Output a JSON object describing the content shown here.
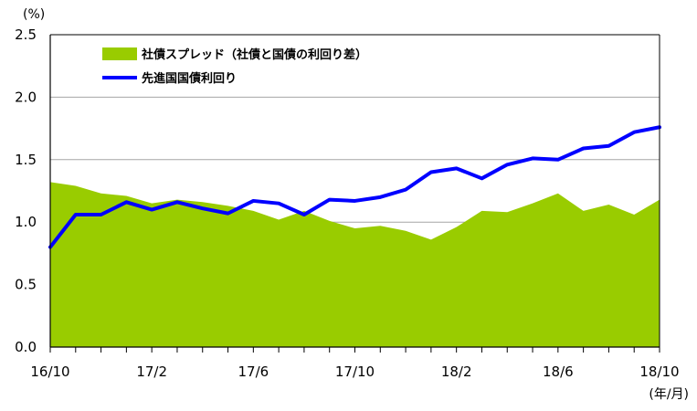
{
  "chart_data": {
    "type": "area",
    "y_unit_label": "(%)",
    "x_unit_label": "(年/月)",
    "ylim": [
      0,
      2.5
    ],
    "y_ticks": [
      "0.0",
      "0.5",
      "1.0",
      "1.5",
      "2.0",
      "2.5"
    ],
    "x_tick_labels": [
      "16/10",
      "17/2",
      "17/6",
      "17/10",
      "18/2",
      "18/6",
      "18/10"
    ],
    "grid": "horizontal",
    "legend_placement": "top-left",
    "x": [
      "16/10",
      "16/11",
      "16/12",
      "17/1",
      "17/2",
      "17/3",
      "17/4",
      "17/5",
      "17/6",
      "17/7",
      "17/8",
      "17/9",
      "17/10",
      "17/11",
      "17/12",
      "18/1",
      "18/2",
      "18/3",
      "18/4",
      "18/5",
      "18/6",
      "18/7",
      "18/8",
      "18/9",
      "18/10"
    ],
    "series": [
      {
        "name": "社債スプレッド（社債と国債の利回り差）",
        "kind": "area",
        "color": "#99cc00",
        "values": [
          1.32,
          1.29,
          1.23,
          1.21,
          1.15,
          1.18,
          1.16,
          1.13,
          1.09,
          1.02,
          1.09,
          1.01,
          0.95,
          0.97,
          0.93,
          0.86,
          0.96,
          1.09,
          1.08,
          1.15,
          1.23,
          1.09,
          1.14,
          1.06,
          1.18
        ]
      },
      {
        "name": "先進国国債利回り",
        "kind": "line",
        "color": "#0000ff",
        "values": [
          0.8,
          1.06,
          1.06,
          1.16,
          1.1,
          1.16,
          1.11,
          1.07,
          1.17,
          1.15,
          1.06,
          1.18,
          1.17,
          1.2,
          1.26,
          1.4,
          1.43,
          1.35,
          1.46,
          1.51,
          1.5,
          1.59,
          1.61,
          1.72,
          1.76
        ]
      }
    ]
  }
}
